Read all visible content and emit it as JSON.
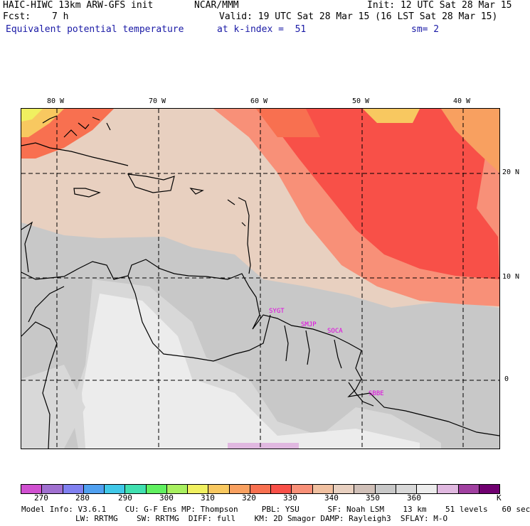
{
  "header": {
    "title_left": "HAIC-HIWC 13km ARW-GFS init",
    "title_center": "NCAR/MMM",
    "init": "Init: 12 UTC Sat 28 Mar 15",
    "fcst_label": "Fcst:",
    "fcst_value": "7 h",
    "valid": "Valid: 19 UTC Sat 28 Mar 15 (16 LST Sat 28 Mar 15)",
    "field": "Equivalent potential temperature",
    "level": "at k-index =  51",
    "smoothing": "sm= 2"
  },
  "map": {
    "lon_labels": [
      "80 W",
      "70 W",
      "60 W",
      "50 W",
      "40 W"
    ],
    "lat_labels": [
      "20 N",
      "10 N",
      "0"
    ],
    "stations": [
      "SYGT",
      "SMJP",
      "SOCA",
      "SBBE"
    ]
  },
  "colorbar": {
    "colors": [
      "#d050d0",
      "#a070d0",
      "#8080f0",
      "#50a0f0",
      "#40c8e8",
      "#40e0b0",
      "#60f060",
      "#a8f060",
      "#f0f060",
      "#f8c860",
      "#f8a060",
      "#f87050",
      "#f85048",
      "#f89078",
      "#f0c0a0",
      "#e8d0c0",
      "#d0c0b8",
      "#c8c8c8",
      "#d8d8d8",
      "#ececec",
      "#e0b8e0",
      "#a040a0",
      "#700070"
    ],
    "ticks": [
      "270",
      "280",
      "290",
      "300",
      "310",
      "320",
      "330",
      "340",
      "350",
      "360"
    ],
    "unit": "K"
  },
  "footer": {
    "line1": "Model Info: V3.6.1    CU: G-F Ens MP: Thompson     PBL: YSU      SF: Noah LSM    13 km    51 levels   60 sec",
    "line2": "                LW: RRTMG    SW: RRTMG  DIFF: full    KM: 2D Smagor DAMP: Rayleigh3  SFLAY: M-O"
  }
}
